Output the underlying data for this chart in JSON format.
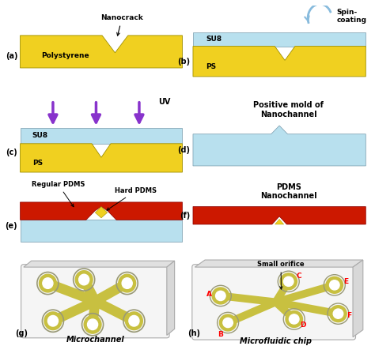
{
  "yellow": "#F0D020",
  "light_blue": "#B8E0EE",
  "red": "#CC1800",
  "purple": "#8833CC",
  "arrow_blue": "#88BBDD",
  "channel_color": "#C8C040",
  "bg": "#FFFFFF",
  "panel_a_label": "Polystyrene",
  "panel_b_su8": "SU8",
  "panel_b_ps": "PS",
  "panel_c_su8": "SU8",
  "panel_c_ps": "PS",
  "panel_d_label": "Positive mold of\nNanochannel",
  "panel_e_reg": "Regular PDMS",
  "panel_e_hard": "Hard PDMS",
  "panel_f_label": "PDMS\nNanochannel",
  "panel_g_label": "Microchannel",
  "panel_h_label": "Microfluidic chip",
  "nanocrack_label": "Nanocrack",
  "uv_label": "UV",
  "spin_label": "Spin-\ncoating",
  "small_orifice": "Small orifice"
}
